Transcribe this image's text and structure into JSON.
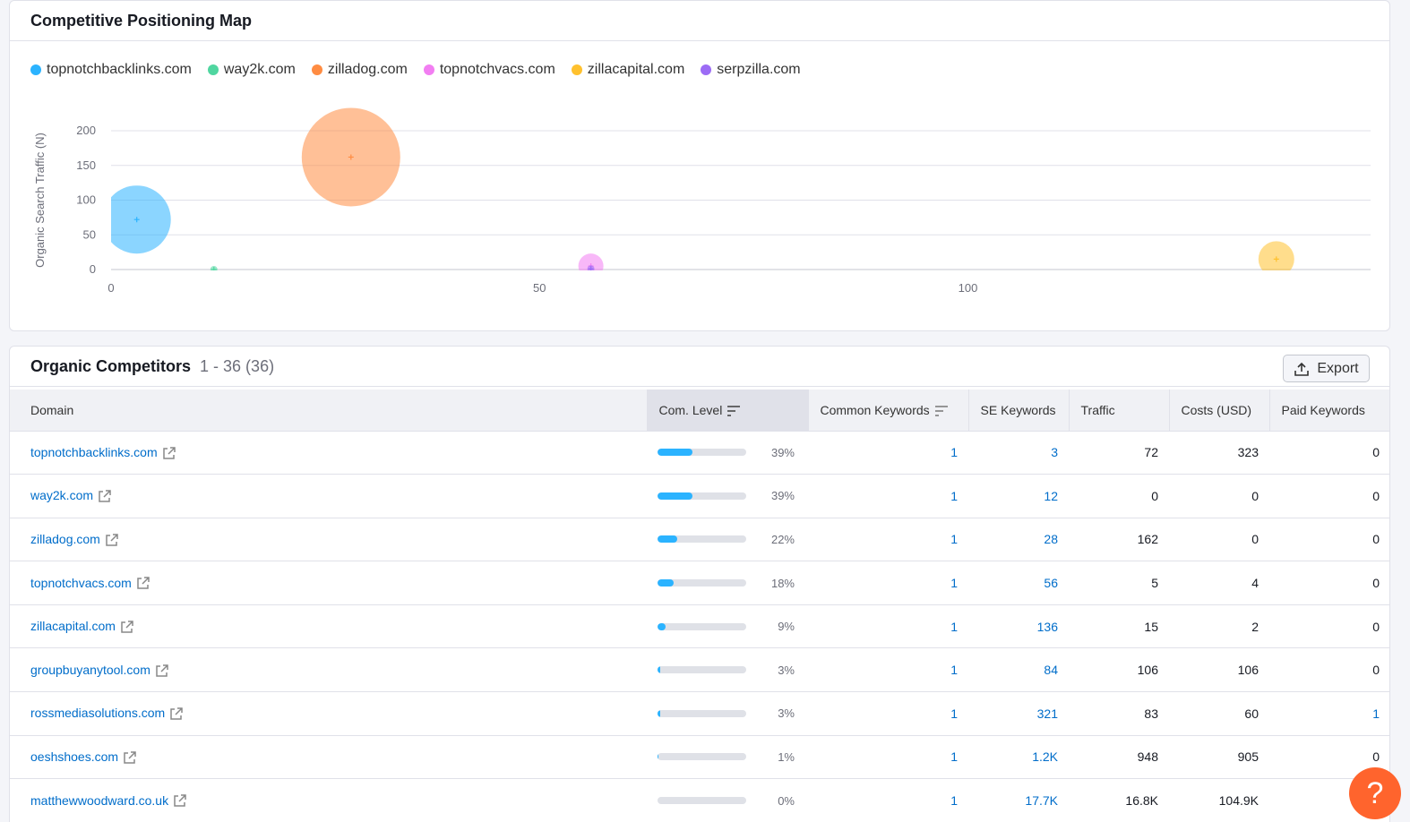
{
  "map": {
    "title": "Competitive Positioning Map",
    "legend": [
      {
        "label": "topnotchbacklinks.com",
        "color": "#2bb3ff"
      },
      {
        "label": "way2k.com",
        "color": "#50d6a0"
      },
      {
        "label": "zilladog.com",
        "color": "#ff8c42"
      },
      {
        "label": "topnotchvacs.com",
        "color": "#f27ef2"
      },
      {
        "label": "zillacapital.com",
        "color": "#ffc12e"
      },
      {
        "label": "serpzilla.com",
        "color": "#9c6cf5"
      }
    ]
  },
  "chart_data": {
    "type": "scatter",
    "title": "Competitive Positioning Map",
    "xlabel": "",
    "ylabel": "Organic Search Traffic (N)",
    "xlim": [
      0,
      147
    ],
    "ylim": [
      0,
      200
    ],
    "x_ticks": [
      0,
      50,
      100
    ],
    "y_ticks": [
      0,
      50,
      100,
      150,
      200
    ],
    "grid": true,
    "legend_position": "top-left",
    "series": [
      {
        "name": "topnotchbacklinks.com",
        "color": "#2bb3ff",
        "x": 3,
        "y": 72,
        "size": 38
      },
      {
        "name": "way2k.com",
        "color": "#50d6a0",
        "x": 12,
        "y": 0,
        "size": 4
      },
      {
        "name": "zilladog.com",
        "color": "#ff8c42",
        "x": 28,
        "y": 162,
        "size": 55
      },
      {
        "name": "topnotchvacs.com",
        "color": "#f27ef2",
        "x": 56,
        "y": 5,
        "size": 14
      },
      {
        "name": "zillacapital.com",
        "color": "#ffc12e",
        "x": 136,
        "y": 15,
        "size": 20
      },
      {
        "name": "serpzilla.com",
        "color": "#9c6cf5",
        "x": 56,
        "y": 1,
        "size": 4
      }
    ]
  },
  "competitors": {
    "title": "Organic Competitors",
    "range": "1 - 36 (36)",
    "export_label": "Export",
    "columns": [
      "Domain",
      "Com. Level",
      "Common Keywords",
      "SE Keywords",
      "Traffic",
      "Costs (USD)",
      "Paid Keywords"
    ],
    "rows": [
      {
        "domain": "topnotchbacklinks.com",
        "level": 39,
        "level_label": "39%",
        "common": "1",
        "se": "3",
        "traffic": "72",
        "costs": "323",
        "paid": "0"
      },
      {
        "domain": "way2k.com",
        "level": 39,
        "level_label": "39%",
        "common": "1",
        "se": "12",
        "traffic": "0",
        "costs": "0",
        "paid": "0"
      },
      {
        "domain": "zilladog.com",
        "level": 22,
        "level_label": "22%",
        "common": "1",
        "se": "28",
        "traffic": "162",
        "costs": "0",
        "paid": "0"
      },
      {
        "domain": "topnotchvacs.com",
        "level": 18,
        "level_label": "18%",
        "common": "1",
        "se": "56",
        "traffic": "5",
        "costs": "4",
        "paid": "0"
      },
      {
        "domain": "zillacapital.com",
        "level": 9,
        "level_label": "9%",
        "common": "1",
        "se": "136",
        "traffic": "15",
        "costs": "2",
        "paid": "0"
      },
      {
        "domain": "groupbuyanytool.com",
        "level": 3,
        "level_label": "3%",
        "common": "1",
        "se": "84",
        "traffic": "106",
        "costs": "106",
        "paid": "0"
      },
      {
        "domain": "rossmediasolutions.com",
        "level": 3,
        "level_label": "3%",
        "common": "1",
        "se": "321",
        "traffic": "83",
        "costs": "60",
        "paid": "1"
      },
      {
        "domain": "oeshshoes.com",
        "level": 1,
        "level_label": "1%",
        "common": "1",
        "se": "1.2K",
        "traffic": "948",
        "costs": "905",
        "paid": "0"
      },
      {
        "domain": "matthewwoodward.co.uk",
        "level": 0,
        "level_label": "0%",
        "common": "1",
        "se": "17.7K",
        "traffic": "16.8K",
        "costs": "104.9K",
        "paid": ""
      }
    ]
  },
  "help": {
    "label": "?"
  }
}
